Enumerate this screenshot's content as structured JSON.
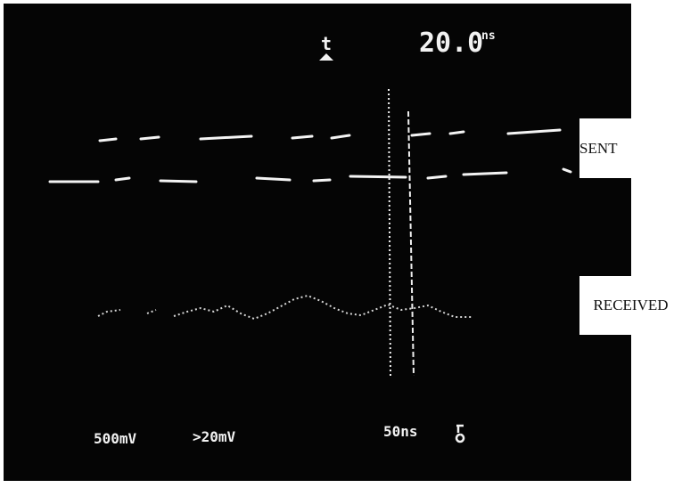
{
  "readout": {
    "cursor_symbol": "t",
    "delta_value": "20.0",
    "delta_unit": "ns"
  },
  "labels": {
    "sent": "SENT",
    "received": "RECEIVED"
  },
  "settings": {
    "channel_1": "500mV",
    "channel_2": ">20mV",
    "timebase": "50ns"
  }
}
